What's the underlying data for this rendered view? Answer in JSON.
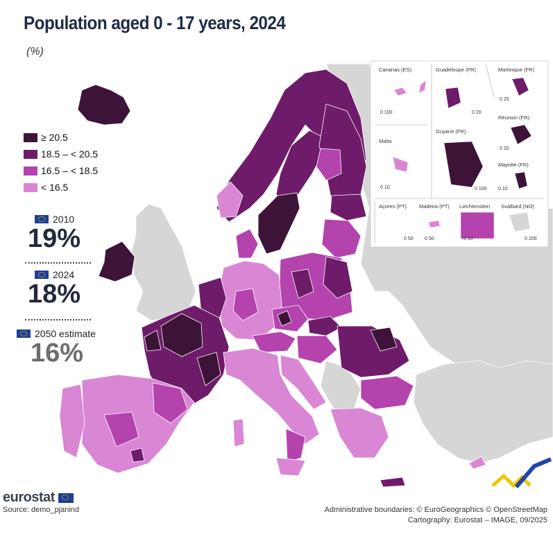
{
  "title": "Population aged 0 - 17 years, 2024",
  "unit": "(%)",
  "colors": {
    "c1": "#3d1438",
    "c2": "#6e1b6a",
    "c3": "#b443ad",
    "c4": "#d986d4",
    "nodata": "#d6d6d6",
    "sea": "#ffffff"
  },
  "legend": [
    {
      "label": "≥ 20.5",
      "color": "#3d1438"
    },
    {
      "label": "18.5 – < 20.5",
      "color": "#6e1b6a"
    },
    {
      "label": "16.5 – < 18.5",
      "color": "#b443ad"
    },
    {
      "label": "< 16.5",
      "color": "#d986d4"
    }
  ],
  "stats": [
    {
      "label": "2010",
      "value": "19%"
    },
    {
      "label": "2024",
      "value": "18%"
    },
    {
      "label": "2050 estimate",
      "value": "16%"
    }
  ],
  "insets": [
    {
      "name": "Canarias (ES)",
      "scale": "0  100"
    },
    {
      "name": "Guadeloupe (FR)",
      "scale": "0  20"
    },
    {
      "name": "Martinique (FR)",
      "scale": "0  20"
    },
    {
      "name": "Réunion (FR)",
      "scale": "0  20"
    },
    {
      "name": "Malta",
      "scale": "0  10"
    },
    {
      "name": "Guyane (FR)",
      "scale": "0  100"
    },
    {
      "name": "Mayotte (FR)",
      "scale": "0  10"
    },
    {
      "name": "Açores (PT)",
      "scale": "0  50"
    },
    {
      "name": "Madeira (PT)",
      "scale": "0  50"
    },
    {
      "name": "Liechtenstein",
      "scale": "0  10"
    },
    {
      "name": "Svalbard (NO)",
      "scale": "0  200"
    }
  ],
  "logo": "eurostat",
  "source": "Source: demo_pjanind",
  "credits": [
    "Administrative boundaries: © EuroGeographics © OpenStreetMap",
    "Cartography: Eurostat – IMAGE, 09/2025"
  ]
}
